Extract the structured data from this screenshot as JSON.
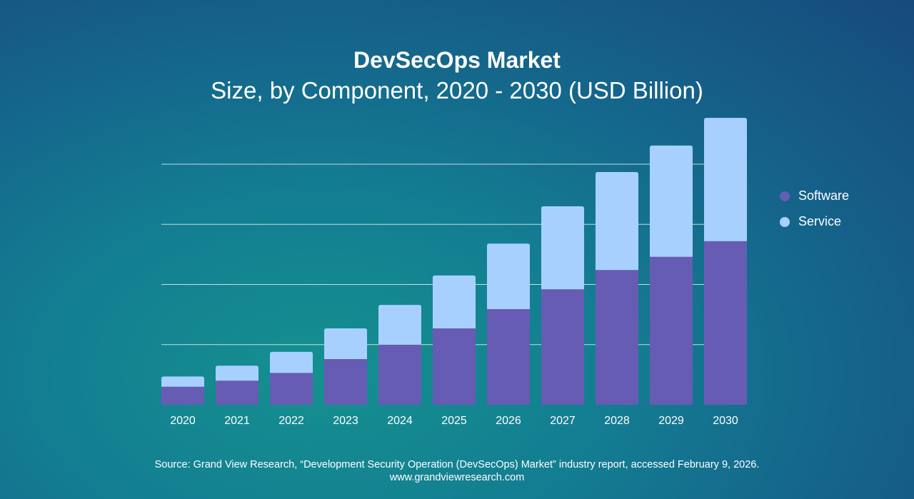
{
  "chart_data": {
    "type": "bar",
    "stacked": true,
    "title": "DevSecOps Market",
    "subtitle": "Size, by Component, 2020 - 2030 (USD Billion)",
    "xlabel": "",
    "ylabel": "",
    "categories": [
      "2020",
      "2021",
      "2022",
      "2023",
      "2024",
      "2025",
      "2026",
      "2027",
      "2028",
      "2029",
      "2030"
    ],
    "series": [
      {
        "name": "Software",
        "color": "#675cb3",
        "values": [
          0.3,
          0.4,
          0.53,
          0.76,
          1.0,
          1.27,
          1.59,
          1.92,
          2.24,
          2.46,
          2.72
        ]
      },
      {
        "name": "Service",
        "color": "#a8d0ff",
        "values": [
          0.17,
          0.25,
          0.35,
          0.51,
          0.66,
          0.88,
          1.09,
          1.38,
          1.63,
          1.85,
          2.05
        ]
      }
    ],
    "ylim": [
      0,
      5
    ],
    "gridlines": [
      1,
      2,
      3,
      4
    ],
    "grid": true,
    "y_tick_labels_shown": false,
    "legend_position": "right"
  },
  "source": "Source: Grand View Research, “Development Security Operation (DevSecOps) Market” industry report, accessed February 9, 2026.",
  "website": "www.grandviewresearch.com"
}
